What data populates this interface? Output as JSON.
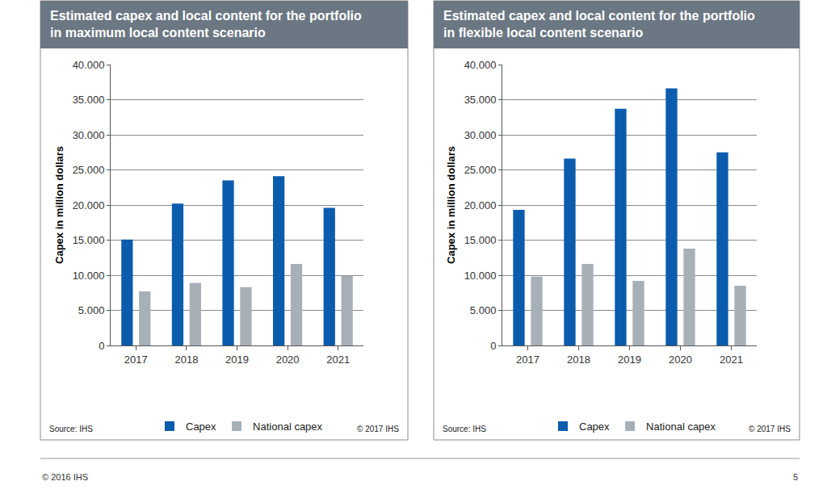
{
  "chart_data": [
    {
      "type": "bar",
      "title": "Estimated capex and local content for the portfolio\nin maximum local content scenario",
      "ylabel": "Capex in million dollars",
      "source": "Source: IHS",
      "copyright": "© 2017 IHS",
      "categories": [
        "2017",
        "2018",
        "2019",
        "2020",
        "2021"
      ],
      "series": [
        {
          "name": "Capex",
          "color": "#0b5cad",
          "values": [
            15100,
            20200,
            23500,
            24100,
            19600
          ]
        },
        {
          "name": "National capex",
          "color": "#a7afb7",
          "values": [
            7700,
            8900,
            8300,
            11600,
            9900
          ]
        }
      ],
      "ylim": [
        0,
        40000
      ],
      "yticks": [
        0,
        {
          "value": 5000,
          "label": "5.000"
        },
        {
          "value": 10000,
          "label": "10.000"
        },
        {
          "value": 15000,
          "label": "15.000"
        },
        {
          "value": 20000,
          "label": "20.000"
        },
        {
          "value": 25000,
          "label": "25.000"
        },
        {
          "value": 30000,
          "label": "30.000"
        },
        {
          "value": 35000,
          "label": "35.000"
        },
        {
          "value": 40000,
          "label": "40.000"
        }
      ],
      "grid": true,
      "legend": "bottom"
    },
    {
      "type": "bar",
      "title": "Estimated capex and local content for the portfolio\nin flexible local content scenario",
      "ylabel": "Capex in million dollars",
      "source": "Source: IHS",
      "copyright": "© 2017 IHS",
      "categories": [
        "2017",
        "2018",
        "2019",
        "2020",
        "2021"
      ],
      "series": [
        {
          "name": "Capex",
          "color": "#0b5cad",
          "values": [
            19300,
            26600,
            33700,
            36600,
            27500
          ]
        },
        {
          "name": "National capex",
          "color": "#a7afb7",
          "values": [
            9800,
            11600,
            9200,
            13800,
            8500
          ]
        }
      ],
      "ylim": [
        0,
        40000
      ],
      "yticks": [
        0,
        {
          "value": 5000,
          "label": "5.000"
        },
        {
          "value": 10000,
          "label": "10.000"
        },
        {
          "value": 15000,
          "label": "15.000"
        },
        {
          "value": 20000,
          "label": "20.000"
        },
        {
          "value": 25000,
          "label": "25.000"
        },
        {
          "value": 30000,
          "label": "30.000"
        },
        {
          "value": 35000,
          "label": "35.000"
        },
        {
          "value": 40000,
          "label": "40.000"
        }
      ],
      "grid": true,
      "legend": "bottom"
    }
  ],
  "footer": {
    "copyright": "© 2016 IHS",
    "page": "5"
  }
}
